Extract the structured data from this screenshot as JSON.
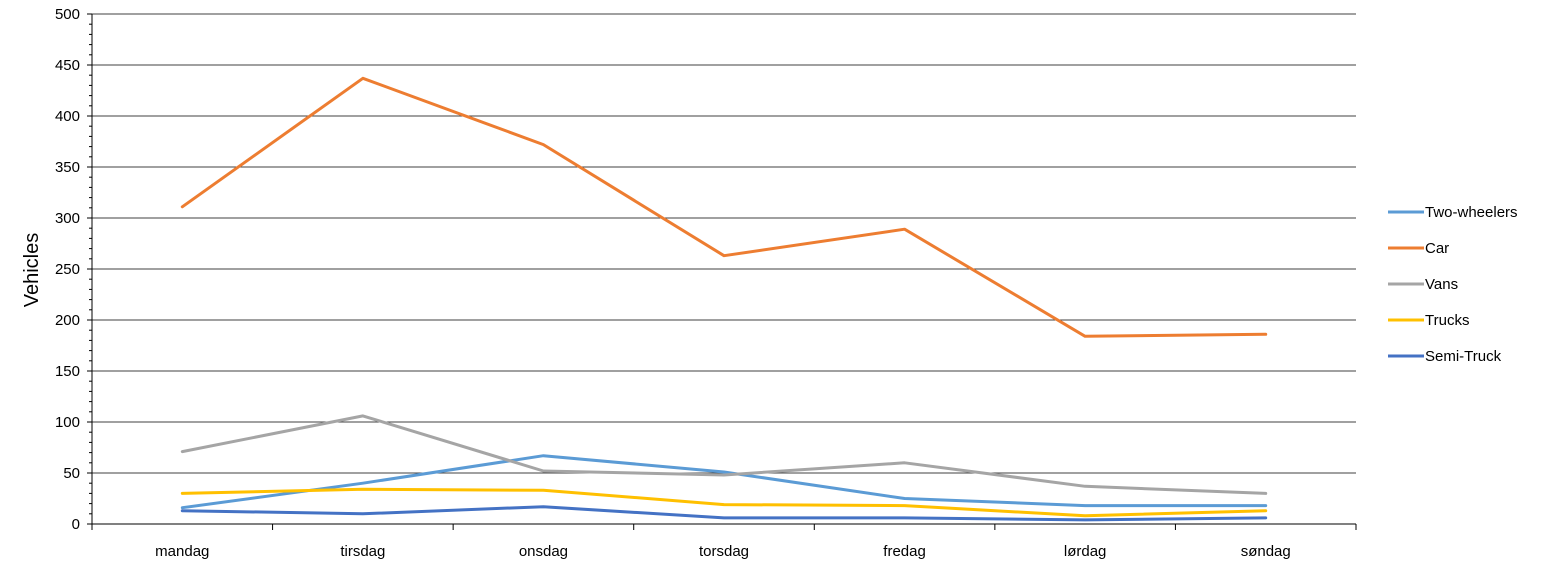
{
  "chart_data": {
    "type": "line",
    "title": "",
    "xlabel": "",
    "ylabel": "Vehicles",
    "ylim": [
      0,
      500
    ],
    "ytick_step": 50,
    "grid": true,
    "legend_position": "right",
    "categories": [
      "mandag",
      "tirsdag",
      "onsdag",
      "torsdag",
      "fredag",
      "lørdag",
      "søndag"
    ],
    "series": [
      {
        "name": "Two-wheelers",
        "color": "#5B9BD5",
        "values": [
          16,
          40,
          67,
          51,
          25,
          18,
          18
        ]
      },
      {
        "name": "Car",
        "color": "#ED7D31",
        "values": [
          311,
          437,
          372,
          263,
          289,
          184,
          186
        ]
      },
      {
        "name": "Vans",
        "color": "#A5A5A5",
        "values": [
          71,
          106,
          52,
          48,
          60,
          37,
          30
        ]
      },
      {
        "name": "Trucks",
        "color": "#FFC000",
        "values": [
          30,
          34,
          33,
          19,
          18,
          8,
          13
        ]
      },
      {
        "name": "Semi-Truck",
        "color": "#4472C4",
        "values": [
          13,
          10,
          17,
          6,
          6,
          4,
          6
        ]
      }
    ]
  }
}
